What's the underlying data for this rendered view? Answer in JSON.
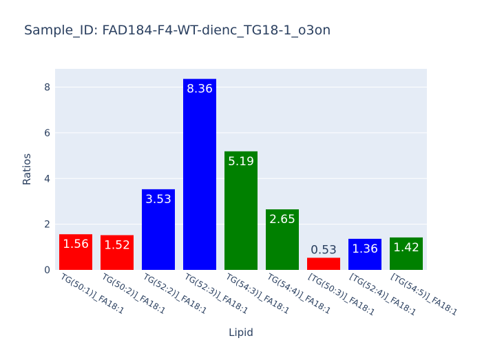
{
  "chart_data": {
    "type": "bar",
    "title": "Sample_ID: FAD184-F4-WT-dienc_TG18-1_o3on",
    "xlabel": "Lipid",
    "ylabel": "Ratios",
    "ylim": [
      0,
      8.8
    ],
    "yticks": [
      0,
      2,
      4,
      6,
      8
    ],
    "grid": true,
    "categories": [
      "TG(50:1)]_FA18:1",
      "TG(50:2)]_FA18:1",
      "TG(52:2)]_FA18:1",
      "TG(52:3)]_FA18:1",
      "TG(54:3)]_FA18:1",
      "TG(54:4)]_FA18:1",
      "[TG(50:3)]_FA18:1",
      "[TG(52:4)]_FA18:1",
      "[TG(54:5)]_FA18:1"
    ],
    "values": [
      1.56,
      1.52,
      3.53,
      8.36,
      5.19,
      2.65,
      0.53,
      1.36,
      1.42
    ],
    "labels": [
      "1.56",
      "1.52",
      "3.53",
      "8.36",
      "5.19",
      "2.65",
      "0.53",
      "1.36",
      "1.42"
    ],
    "colors": [
      "#ff0000",
      "#ff0000",
      "#0000ff",
      "#0000ff",
      "#008000",
      "#008000",
      "#ff0000",
      "#0000ff",
      "#008000"
    ]
  },
  "style": {
    "plot_bg": "#e5ecf6",
    "grid_color": "#ffffff",
    "text_color": "#2a3f5f",
    "inside_label_color": "#ffffff"
  }
}
